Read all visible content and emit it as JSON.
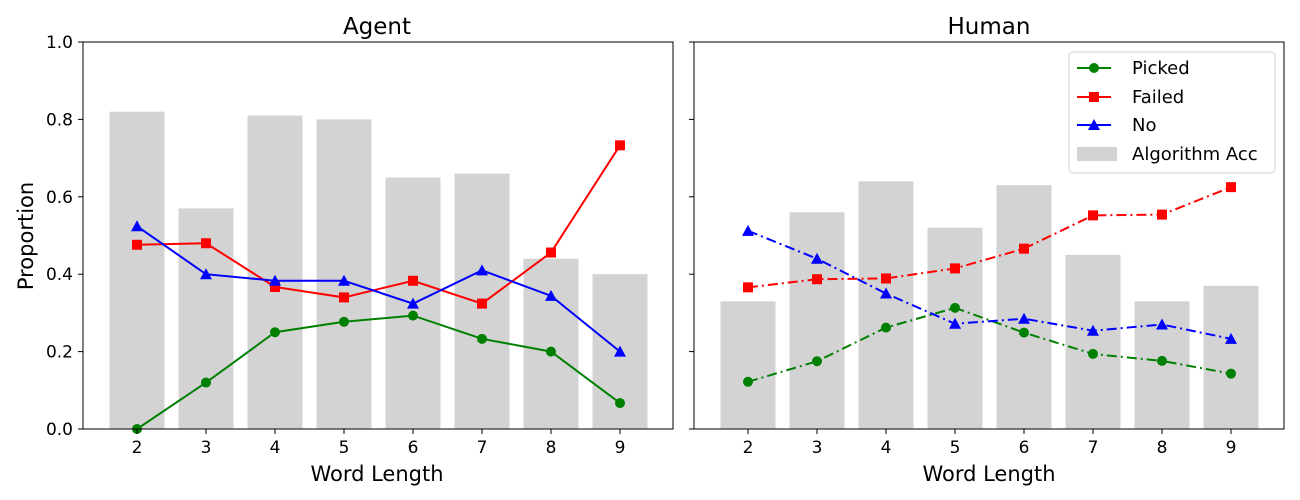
{
  "chart_data": [
    {
      "type": "bar+line",
      "title": "Agent",
      "xlabel": "Word Length",
      "ylabel": "Proportion",
      "categories": [
        "2",
        "3",
        "4",
        "5",
        "6",
        "7",
        "8",
        "9"
      ],
      "ylim": [
        0,
        1.0
      ],
      "yticks": [
        "0.0",
        "0.2",
        "0.4",
        "0.6",
        "0.8",
        "1.0"
      ],
      "bars": {
        "name": "Algorithm Acc",
        "color": "#d3d3d3",
        "values": [
          0.82,
          0.57,
          0.81,
          0.8,
          0.65,
          0.66,
          0.44,
          0.4
        ]
      },
      "series": [
        {
          "name": "Picked",
          "color": "#008000",
          "marker": "circle",
          "dash": "solid",
          "values": [
            0.0,
            0.12,
            0.25,
            0.277,
            0.293,
            0.233,
            0.2,
            0.067
          ]
        },
        {
          "name": "Failed",
          "color": "#ff0000",
          "marker": "square",
          "dash": "solid",
          "values": [
            0.476,
            0.48,
            0.367,
            0.34,
            0.383,
            0.324,
            0.456,
            0.733
          ]
        },
        {
          "name": "No",
          "color": "#0000ff",
          "marker": "triangle",
          "dash": "solid",
          "values": [
            0.524,
            0.4,
            0.383,
            0.383,
            0.324,
            0.41,
            0.344,
            0.2
          ]
        }
      ]
    },
    {
      "type": "bar+line",
      "title": "Human",
      "xlabel": "Word Length",
      "ylabel": "",
      "categories": [
        "2",
        "3",
        "4",
        "5",
        "6",
        "7",
        "8",
        "9"
      ],
      "ylim": [
        0,
        1.0
      ],
      "bars": {
        "name": "Algorithm Acc",
        "color": "#d3d3d3",
        "values": [
          0.33,
          0.56,
          0.64,
          0.52,
          0.63,
          0.45,
          0.33,
          0.37
        ]
      },
      "series": [
        {
          "name": "Picked",
          "color": "#008000",
          "marker": "circle",
          "dash": "dashdot",
          "values": [
            0.122,
            0.175,
            0.262,
            0.313,
            0.249,
            0.194,
            0.176,
            0.143
          ]
        },
        {
          "name": "Failed",
          "color": "#ff0000",
          "marker": "square",
          "dash": "dashdot",
          "values": [
            0.366,
            0.387,
            0.389,
            0.415,
            0.466,
            0.552,
            0.554,
            0.625
          ]
        },
        {
          "name": "No",
          "color": "#0000ff",
          "marker": "triangle",
          "dash": "dashdot",
          "values": [
            0.512,
            0.44,
            0.35,
            0.272,
            0.285,
            0.254,
            0.27,
            0.233
          ]
        }
      ],
      "legend": {
        "position": "top-right",
        "entries": [
          "Picked",
          "Failed",
          "No",
          "Algorithm Acc"
        ]
      }
    }
  ]
}
